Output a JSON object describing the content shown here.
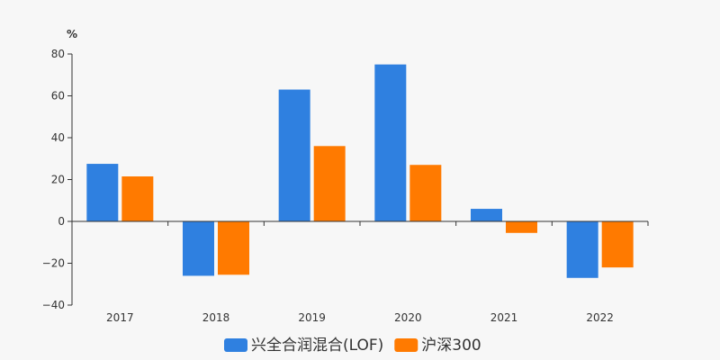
{
  "colors": {
    "background": "#f7f7f7",
    "axis": "#333333"
  },
  "chart_data": {
    "type": "bar",
    "unit_label": "%",
    "categories": [
      "2017",
      "2018",
      "2019",
      "2020",
      "2021",
      "2022"
    ],
    "series": [
      {
        "name": "兴全合润混合(LOF)",
        "color": "#2f80e0",
        "values": [
          27.5,
          -26,
          63,
          75,
          6,
          -27
        ]
      },
      {
        "name": "沪深300",
        "color": "#ff7a00",
        "values": [
          21.5,
          -25.5,
          36,
          27,
          -5.5,
          -22
        ]
      }
    ],
    "ylim": [
      -40,
      80
    ],
    "yticks": [
      -40,
      -20,
      0,
      20,
      40,
      60,
      80
    ],
    "grid": false,
    "legend_position": "bottom-center"
  }
}
